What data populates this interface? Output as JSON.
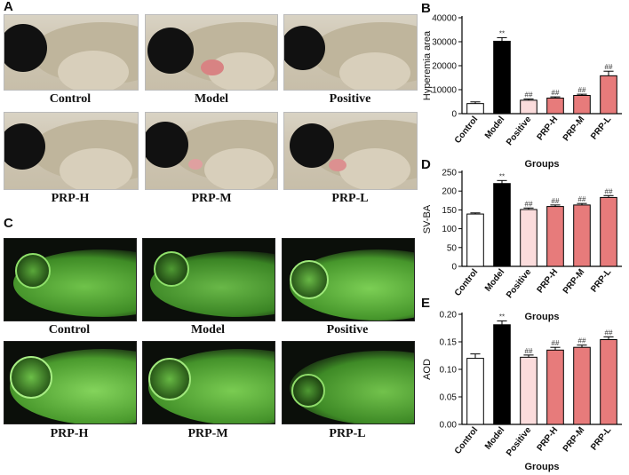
{
  "panels": {
    "A": {
      "label": "A",
      "captions": [
        "Control",
        "Model",
        "Positive",
        "PRP-H",
        "PRP-M",
        "PRP-L"
      ]
    },
    "C": {
      "label": "C",
      "captions": [
        "Control",
        "Model",
        "Positive",
        "PRP-H",
        "PRP-M",
        "PRP-L"
      ]
    }
  },
  "colors": {
    "control": "#ffffff",
    "model": "#000000",
    "positive": "#fbdcdc",
    "prp": "#e77b7b",
    "axis": "#000000"
  },
  "chart_data": [
    {
      "id": "B",
      "label": "B",
      "type": "bar",
      "ylabel": "Hyperemia area",
      "xlabel": "Groups",
      "categories": [
        "Control",
        "Model",
        "Positive",
        "PRP-H",
        "PRP-M",
        "PRP-L"
      ],
      "values": [
        4200,
        30200,
        5600,
        6500,
        7600,
        15800
      ],
      "errors": [
        700,
        1500,
        500,
        500,
        500,
        1900
      ],
      "annotations": [
        "",
        "**",
        "##",
        "##",
        "##",
        "##"
      ],
      "ylim": [
        0,
        40000
      ],
      "yticks": [
        "0",
        "10000",
        "20000",
        "30000",
        "40000"
      ],
      "ytick_values": [
        0,
        10000,
        20000,
        30000,
        40000
      ],
      "grid": false
    },
    {
      "id": "D",
      "label": "D",
      "type": "bar",
      "ylabel": "SV-BA",
      "xlabel": "Groups",
      "categories": [
        "Control",
        "Model",
        "Positive",
        "PRP-H",
        "PRP-M",
        "PRP-L"
      ],
      "values": [
        139,
        220,
        151,
        159,
        163,
        183
      ],
      "errors": [
        3,
        8,
        4,
        4,
        4,
        5
      ],
      "annotations": [
        "",
        "**",
        "##",
        "##",
        "##",
        "##"
      ],
      "ylim": [
        0,
        250
      ],
      "yticks": [
        "0",
        "50",
        "100",
        "150",
        "200",
        "250"
      ],
      "ytick_values": [
        0,
        50,
        100,
        150,
        200,
        250
      ],
      "grid": false
    },
    {
      "id": "E",
      "label": "E",
      "type": "bar",
      "ylabel": "AOD",
      "xlabel": "Groups",
      "categories": [
        "Control",
        "Model",
        "Positive",
        "PRP-H",
        "PRP-M",
        "PRP-L"
      ],
      "values": [
        0.12,
        0.181,
        0.122,
        0.135,
        0.14,
        0.154
      ],
      "errors": [
        0.008,
        0.007,
        0.004,
        0.005,
        0.004,
        0.005
      ],
      "annotations": [
        "",
        "**",
        "##",
        "##",
        "##",
        "##"
      ],
      "ylim": [
        0,
        0.2
      ],
      "yticks": [
        "0.00",
        "0.05",
        "0.10",
        "0.15",
        "0.20"
      ],
      "ytick_values": [
        0,
        0.05,
        0.1,
        0.15,
        0.2
      ],
      "grid": false
    }
  ]
}
